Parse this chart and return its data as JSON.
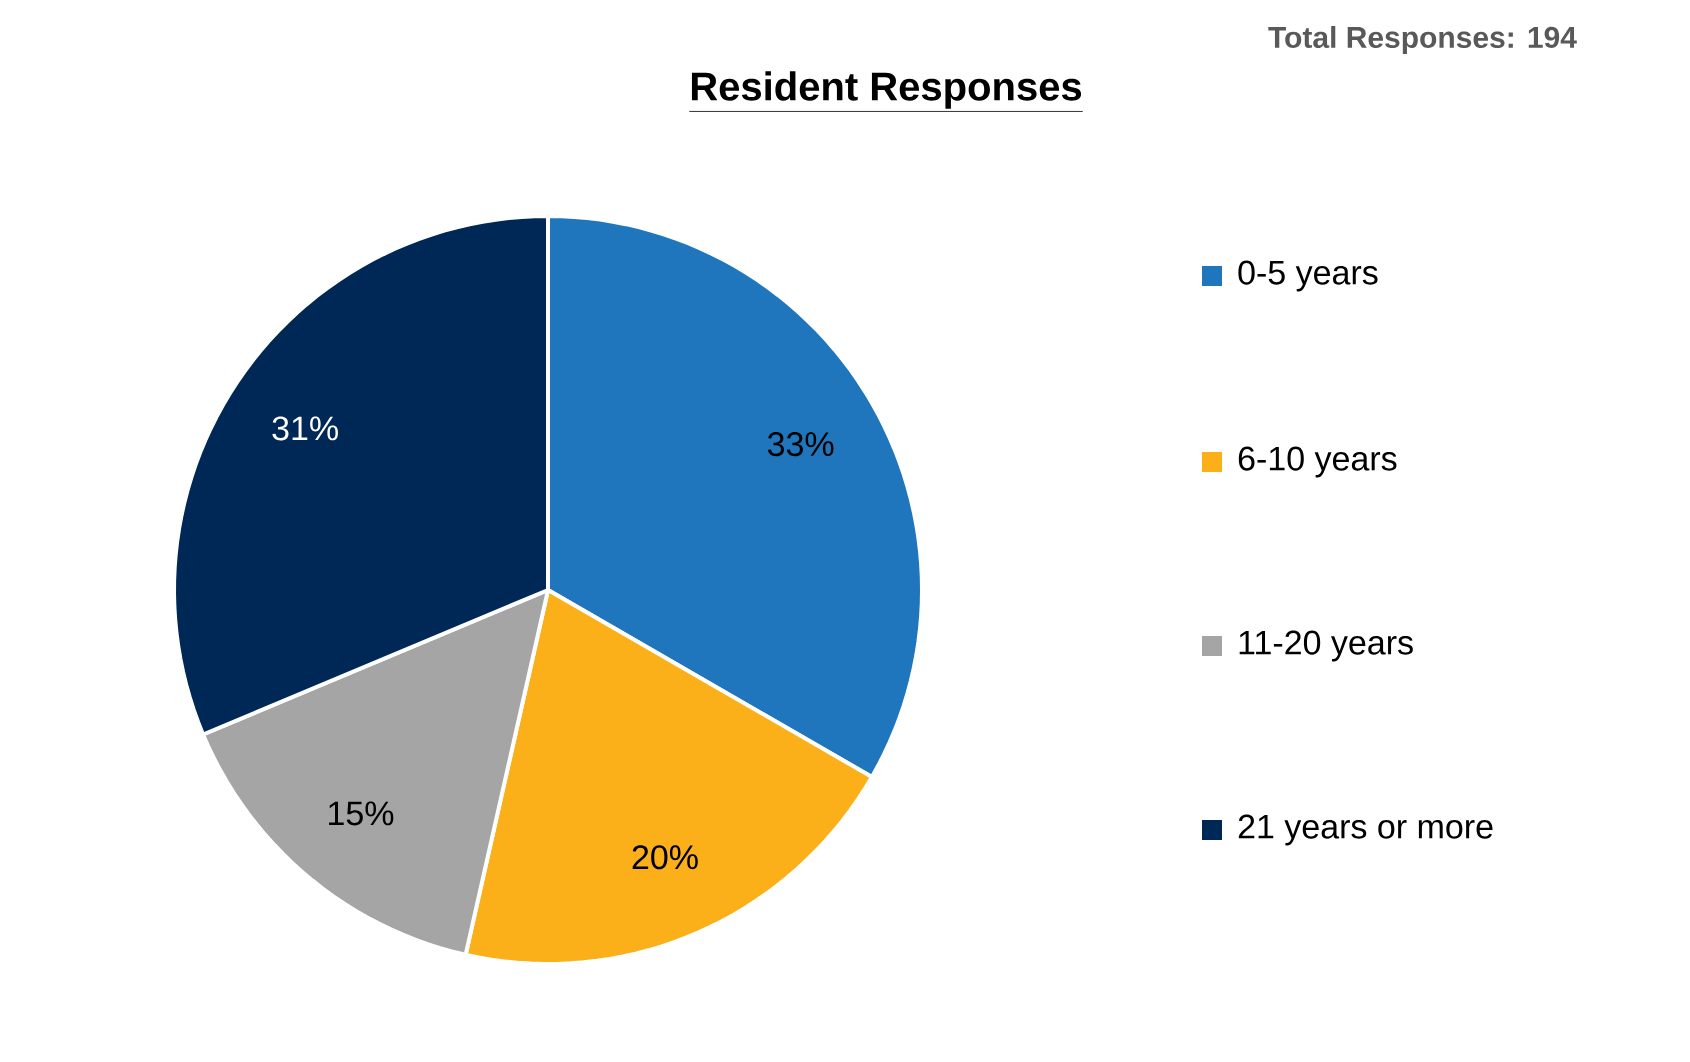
{
  "chart_data": {
    "type": "pie",
    "title": "Resident Responses",
    "annotations": [
      "Total Responses: 194"
    ],
    "categories": [
      "0-5 years",
      "6-10 years",
      "11-20 years",
      "21 years or more"
    ],
    "values": [
      33,
      20,
      15,
      31
    ],
    "colors": [
      "#1f76bd",
      "#fbaf19",
      "#a5a5a5",
      "#002856"
    ],
    "value_labels": [
      "33%",
      "20%",
      "15%",
      "31%"
    ],
    "legend": "right"
  }
}
